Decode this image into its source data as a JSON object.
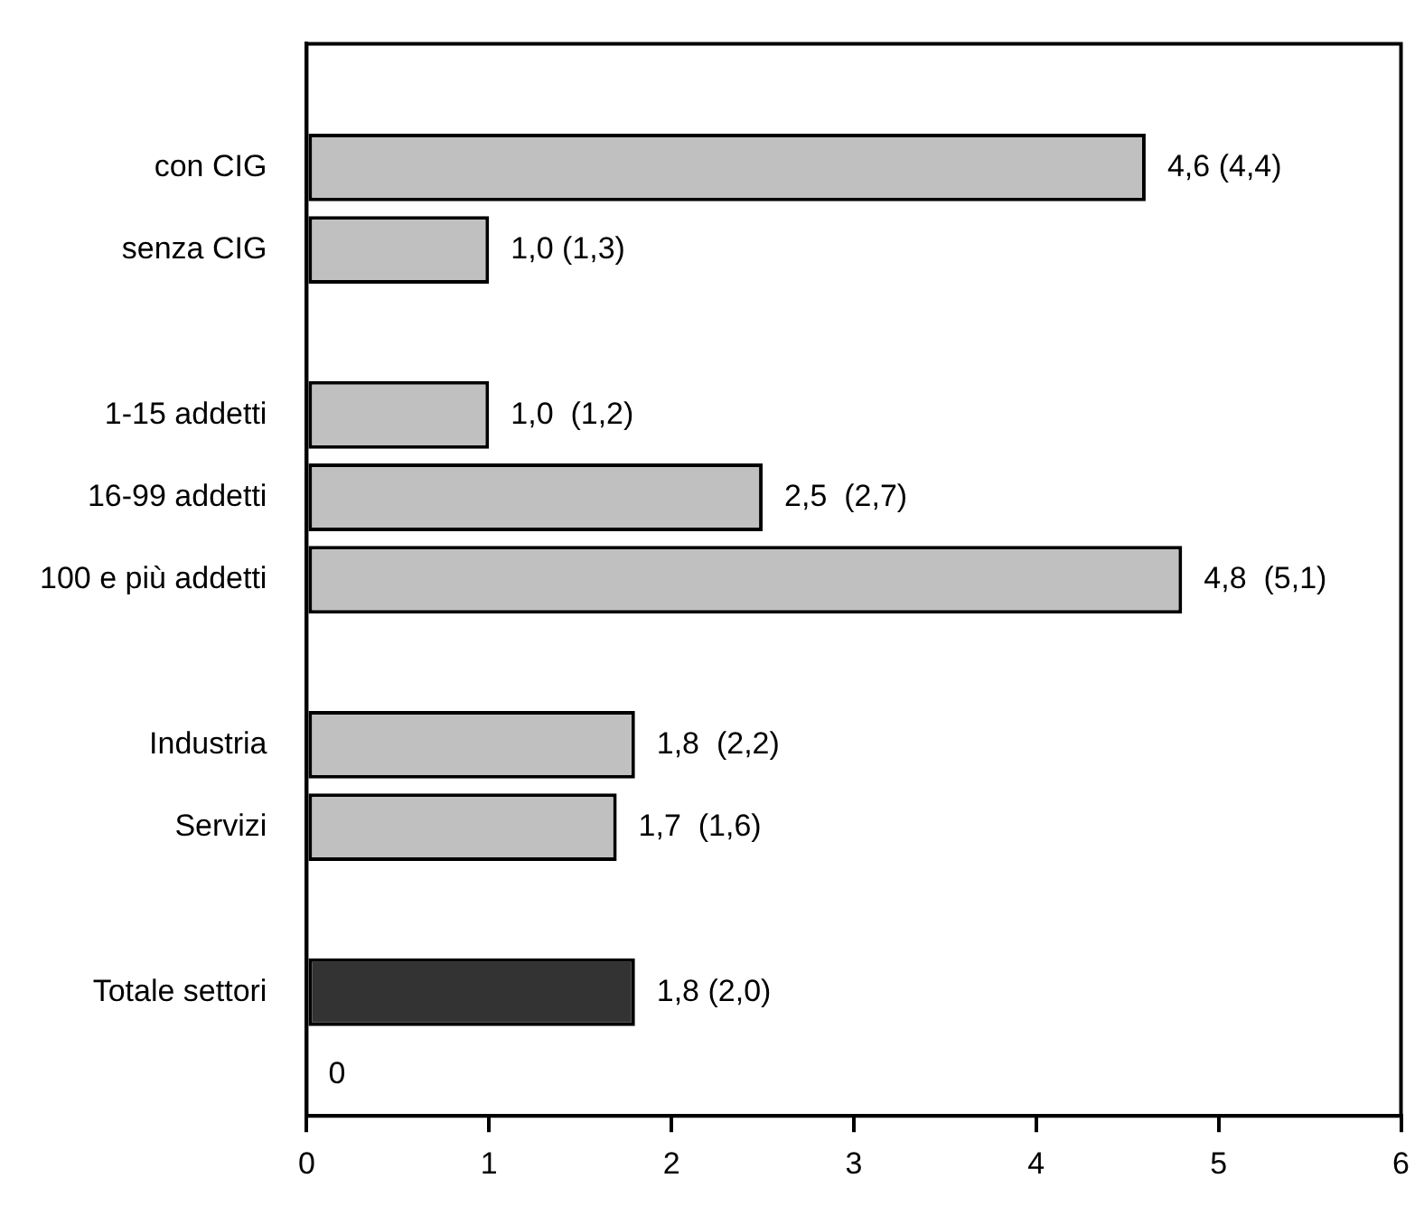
{
  "chart_data": {
    "type": "bar",
    "orientation": "horizontal",
    "categories": [
      null,
      "con CIG",
      "senza CIG",
      null,
      "1-15 addetti",
      "16-99 addetti",
      "100 e più addetti",
      null,
      "Industria",
      "Servizi",
      null,
      "Totale settori",
      null
    ],
    "values": [
      null,
      4.6,
      1.0,
      null,
      1.0,
      2.5,
      4.8,
      null,
      1.8,
      1.7,
      null,
      1.8,
      0
    ],
    "colors": [
      "#c0c0c0",
      "#c0c0c0",
      "#c0c0c0",
      "#c0c0c0",
      "#c0c0c0",
      "#c0c0c0",
      "#c0c0c0",
      "#c0c0c0",
      "#c0c0c0",
      "#c0c0c0",
      "#c0c0c0",
      "#333333",
      "#c0c0c0"
    ],
    "value_labels": [
      null,
      "4,6 (4,4)",
      "1,0 (1,3)",
      null,
      "1,0  (1,2)",
      "2,5  (2,7)",
      "4,8  (5,1)",
      null,
      "1,8  (2,2)",
      "1,7  (1,6)",
      null,
      "1,8 (2,0)",
      "0"
    ],
    "xlim": [
      0,
      6
    ],
    "xticks": [
      0,
      1,
      2,
      3,
      4,
      5,
      6
    ]
  }
}
